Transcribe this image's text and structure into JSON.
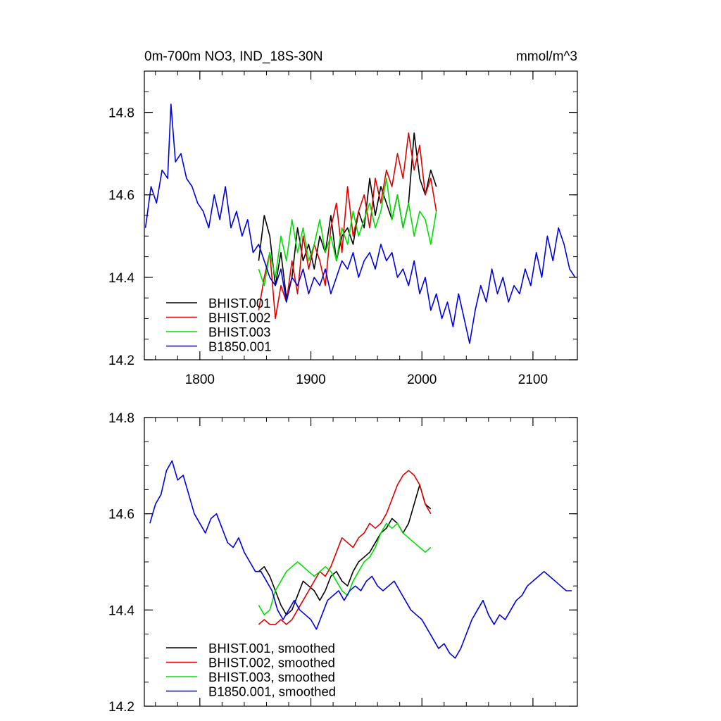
{
  "chart_data": [
    {
      "type": "line",
      "title_left": "0m-700m NO3, IND_18S-30N",
      "title_right": "mmol/m^3",
      "xlim": [
        1750,
        2140
      ],
      "ylim": [
        14.2,
        14.9
      ],
      "xticks": [
        1800,
        1900,
        2000,
        2100
      ],
      "yticks": [
        14.2,
        14.4,
        14.6,
        14.8
      ],
      "ytick_labels": [
        "14.2",
        "14.4",
        "14.6",
        "14.8"
      ],
      "xtick_labels": [
        "1800",
        "1900",
        "2000",
        "2100"
      ],
      "legend_position": "bottom-left",
      "series": [
        {
          "name": "BHIST.001",
          "color": "#000000",
          "x": [
            1853,
            1858,
            1863,
            1868,
            1873,
            1878,
            1883,
            1888,
            1893,
            1898,
            1903,
            1908,
            1913,
            1918,
            1923,
            1928,
            1933,
            1938,
            1943,
            1948,
            1953,
            1958,
            1963,
            1968,
            1973,
            1978,
            1983,
            1988,
            1993,
            1998,
            2003,
            2008,
            2013
          ],
          "y": [
            14.44,
            14.55,
            14.5,
            14.38,
            14.46,
            14.35,
            14.4,
            14.52,
            14.44,
            14.48,
            14.42,
            14.5,
            14.46,
            14.55,
            14.44,
            14.5,
            14.52,
            14.48,
            14.56,
            14.52,
            14.64,
            14.55,
            14.62,
            14.58,
            14.54,
            14.6,
            14.52,
            14.58,
            14.75,
            14.64,
            14.6,
            14.66,
            14.62
          ]
        },
        {
          "name": "BHIST.002",
          "color": "#e00000",
          "x": [
            1853,
            1858,
            1863,
            1868,
            1873,
            1878,
            1883,
            1888,
            1893,
            1898,
            1903,
            1908,
            1913,
            1918,
            1923,
            1928,
            1933,
            1938,
            1943,
            1948,
            1953,
            1958,
            1963,
            1968,
            1973,
            1978,
            1983,
            1988,
            1993,
            1998,
            2003,
            2008,
            2013
          ],
          "y": [
            14.32,
            14.4,
            14.46,
            14.3,
            14.38,
            14.34,
            14.44,
            14.36,
            14.5,
            14.42,
            14.48,
            14.44,
            14.38,
            14.52,
            14.58,
            14.46,
            14.62,
            14.5,
            14.56,
            14.6,
            14.52,
            14.64,
            14.58,
            14.66,
            14.62,
            14.7,
            14.64,
            14.75,
            14.66,
            14.72,
            14.6,
            14.64,
            14.56
          ]
        },
        {
          "name": "BHIST.003",
          "color": "#00e000",
          "x": [
            1853,
            1858,
            1863,
            1868,
            1873,
            1878,
            1883,
            1888,
            1893,
            1898,
            1903,
            1908,
            1913,
            1918,
            1923,
            1928,
            1933,
            1938,
            1943,
            1948,
            1953,
            1958,
            1963,
            1968,
            1973,
            1978,
            1983,
            1988,
            1993,
            1998,
            2003,
            2008,
            2013
          ],
          "y": [
            14.42,
            14.38,
            14.46,
            14.4,
            14.5,
            14.44,
            14.54,
            14.46,
            14.52,
            14.44,
            14.48,
            14.54,
            14.46,
            14.5,
            14.44,
            14.52,
            14.48,
            14.56,
            14.5,
            14.54,
            14.58,
            14.52,
            14.56,
            14.64,
            14.54,
            14.6,
            14.52,
            14.58,
            14.5,
            14.56,
            14.54,
            14.48,
            14.56
          ]
        },
        {
          "name": "B1850.001",
          "color": "#0000e0",
          "x": [
            1751,
            1756,
            1761,
            1766,
            1771,
            1774,
            1778,
            1783,
            1788,
            1793,
            1798,
            1803,
            1808,
            1813,
            1818,
            1823,
            1828,
            1833,
            1838,
            1843,
            1848,
            1853,
            1858,
            1863,
            1868,
            1873,
            1878,
            1883,
            1888,
            1893,
            1898,
            1903,
            1908,
            1913,
            1918,
            1923,
            1928,
            1933,
            1938,
            1943,
            1948,
            1953,
            1958,
            1963,
            1968,
            1973,
            1978,
            1983,
            1988,
            1993,
            1998,
            2003,
            2008,
            2013,
            2018,
            2023,
            2028,
            2033,
            2038,
            2043,
            2048,
            2053,
            2058,
            2063,
            2068,
            2073,
            2078,
            2083,
            2088,
            2093,
            2098,
            2103,
            2108,
            2113,
            2118,
            2123,
            2128,
            2133,
            2138
          ],
          "y": [
            14.52,
            14.62,
            14.58,
            14.66,
            14.64,
            14.82,
            14.68,
            14.7,
            14.64,
            14.62,
            14.58,
            14.56,
            14.52,
            14.6,
            14.54,
            14.62,
            14.52,
            14.56,
            14.5,
            14.54,
            14.46,
            14.48,
            14.44,
            14.4,
            14.38,
            14.42,
            14.34,
            14.4,
            14.38,
            14.42,
            14.36,
            14.4,
            14.38,
            14.42,
            14.36,
            14.4,
            14.44,
            14.42,
            14.46,
            14.4,
            14.44,
            14.46,
            14.42,
            14.48,
            14.44,
            14.46,
            14.4,
            14.42,
            14.38,
            14.44,
            14.36,
            14.4,
            14.32,
            14.36,
            14.3,
            14.34,
            14.28,
            14.36,
            14.3,
            14.24,
            14.32,
            14.38,
            14.34,
            14.42,
            14.36,
            14.4,
            14.34,
            14.38,
            14.36,
            14.42,
            14.38,
            14.46,
            14.4,
            14.5,
            14.44,
            14.52,
            14.48,
            14.42,
            14.4
          ]
        }
      ]
    },
    {
      "type": "line",
      "xlim": [
        1750,
        2140
      ],
      "ylim": [
        14.2,
        14.8
      ],
      "xticks": [
        1800,
        1900,
        2000,
        2100
      ],
      "yticks": [
        14.2,
        14.4,
        14.6,
        14.8
      ],
      "ytick_labels": [
        "14.2",
        "14.4",
        "14.6",
        "14.8"
      ],
      "legend_position": "bottom-left",
      "series": [
        {
          "name": "BHIST.001, smoothed",
          "color": "#000000",
          "x": [
            1853,
            1858,
            1863,
            1868,
            1873,
            1878,
            1883,
            1888,
            1893,
            1898,
            1903,
            1908,
            1913,
            1918,
            1923,
            1928,
            1933,
            1938,
            1943,
            1948,
            1953,
            1958,
            1963,
            1968,
            1973,
            1978,
            1983,
            1988,
            1993,
            1998,
            2003,
            2008
          ],
          "y": [
            14.48,
            14.49,
            14.47,
            14.44,
            14.41,
            14.39,
            14.4,
            14.43,
            14.46,
            14.45,
            14.44,
            14.42,
            14.44,
            14.47,
            14.48,
            14.46,
            14.45,
            14.48,
            14.5,
            14.51,
            14.52,
            14.54,
            14.56,
            14.57,
            14.59,
            14.58,
            14.56,
            14.58,
            14.62,
            14.66,
            14.62,
            14.61
          ]
        },
        {
          "name": "BHIST.002, smoothed",
          "color": "#e00000",
          "x": [
            1853,
            1858,
            1863,
            1868,
            1873,
            1878,
            1883,
            1888,
            1893,
            1898,
            1903,
            1908,
            1913,
            1918,
            1923,
            1928,
            1933,
            1938,
            1943,
            1948,
            1953,
            1958,
            1963,
            1968,
            1973,
            1978,
            1983,
            1988,
            1993,
            1998,
            2003,
            2008
          ],
          "y": [
            14.37,
            14.38,
            14.37,
            14.37,
            14.38,
            14.37,
            14.38,
            14.4,
            14.42,
            14.44,
            14.46,
            14.48,
            14.47,
            14.49,
            14.52,
            14.55,
            14.54,
            14.53,
            14.55,
            14.56,
            14.58,
            14.57,
            14.58,
            14.6,
            14.63,
            14.66,
            14.68,
            14.69,
            14.68,
            14.66,
            14.62,
            14.6
          ]
        },
        {
          "name": "BHIST.003, smoothed",
          "color": "#00e000",
          "x": [
            1853,
            1858,
            1863,
            1868,
            1873,
            1878,
            1883,
            1888,
            1893,
            1898,
            1903,
            1908,
            1913,
            1918,
            1923,
            1928,
            1933,
            1938,
            1943,
            1948,
            1953,
            1958,
            1963,
            1968,
            1973,
            1978,
            1983,
            1988,
            1993,
            1998,
            2003,
            2008
          ],
          "y": [
            14.41,
            14.39,
            14.4,
            14.44,
            14.46,
            14.48,
            14.49,
            14.5,
            14.49,
            14.48,
            14.47,
            14.48,
            14.49,
            14.48,
            14.46,
            14.44,
            14.43,
            14.46,
            14.48,
            14.5,
            14.51,
            14.53,
            14.56,
            14.58,
            14.57,
            14.58,
            14.56,
            14.55,
            14.54,
            14.53,
            14.52,
            14.53
          ]
        },
        {
          "name": "B1850.001, smoothed",
          "color": "#0000e0",
          "x": [
            1755,
            1760,
            1765,
            1770,
            1775,
            1780,
            1785,
            1790,
            1795,
            1800,
            1805,
            1810,
            1815,
            1820,
            1825,
            1830,
            1835,
            1840,
            1845,
            1850,
            1855,
            1860,
            1865,
            1870,
            1875,
            1880,
            1885,
            1890,
            1895,
            1900,
            1905,
            1910,
            1915,
            1920,
            1925,
            1930,
            1935,
            1940,
            1945,
            1950,
            1955,
            1960,
            1965,
            1970,
            1975,
            1980,
            1985,
            1990,
            1995,
            2000,
            2005,
            2010,
            2015,
            2020,
            2025,
            2030,
            2035,
            2040,
            2045,
            2050,
            2055,
            2060,
            2065,
            2070,
            2075,
            2080,
            2085,
            2090,
            2095,
            2100,
            2105,
            2110,
            2115,
            2120,
            2125,
            2130,
            2135
          ],
          "y": [
            14.58,
            14.62,
            14.64,
            14.69,
            14.71,
            14.67,
            14.68,
            14.64,
            14.6,
            14.58,
            14.56,
            14.59,
            14.6,
            14.57,
            14.54,
            14.53,
            14.55,
            14.52,
            14.5,
            14.48,
            14.48,
            14.46,
            14.44,
            14.4,
            14.38,
            14.4,
            14.42,
            14.4,
            14.39,
            14.38,
            14.36,
            14.39,
            14.42,
            14.43,
            14.44,
            14.42,
            14.44,
            14.45,
            14.44,
            14.46,
            14.47,
            14.45,
            14.44,
            14.45,
            14.46,
            14.44,
            14.42,
            14.4,
            14.39,
            14.38,
            14.36,
            14.34,
            14.32,
            14.33,
            14.31,
            14.3,
            14.32,
            14.35,
            14.38,
            14.4,
            14.42,
            14.39,
            14.37,
            14.39,
            14.38,
            14.4,
            14.42,
            14.43,
            14.45,
            14.46,
            14.47,
            14.48,
            14.47,
            14.46,
            14.45,
            14.44,
            14.44
          ]
        }
      ]
    }
  ]
}
